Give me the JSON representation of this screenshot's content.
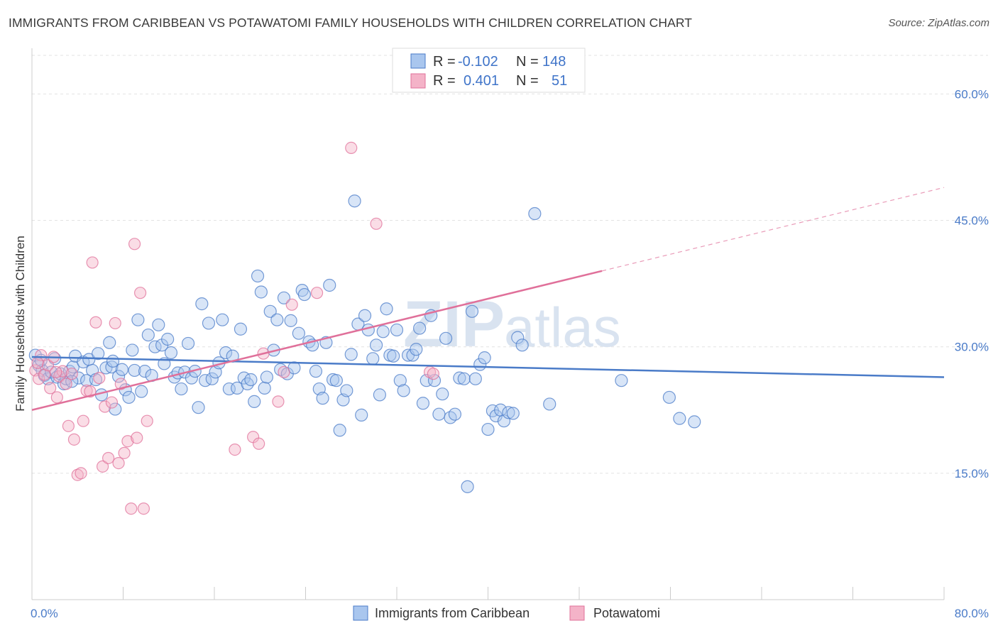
{
  "title": "IMMIGRANTS FROM CARIBBEAN VS POTAWATOMI FAMILY HOUSEHOLDS WITH CHILDREN CORRELATION CHART",
  "source": "Source: ZipAtlas.com",
  "watermark": {
    "bold": "ZIP",
    "light": "atlas"
  },
  "colors": {
    "blue": "#4a7bc8",
    "blue_fill": "#a9c6ee",
    "pink": "#e0709a",
    "pink_fill": "#f4b3c8"
  },
  "legend": {
    "rows": [
      {
        "r_label": "R =",
        "r_value": "-0.102",
        "n_label": "N =",
        "n_value": "148"
      },
      {
        "r_label": "R =",
        "r_value": "0.401",
        "n_label": "N =",
        "n_value": "51"
      }
    ]
  },
  "chart_data": {
    "type": "scatter",
    "title": "IMMIGRANTS FROM CARIBBEAN VS POTAWATOMI FAMILY HOUSEHOLDS WITH CHILDREN CORRELATION CHART",
    "xlabel": "",
    "ylabel": "Family Households with Children",
    "xlim": [
      0,
      80
    ],
    "ylim": [
      0,
      65
    ],
    "x_tick_labels": [
      "0.0%",
      "80.0%"
    ],
    "y_ticks": [
      15,
      30,
      45,
      60
    ],
    "y_tick_labels": [
      "15.0%",
      "30.0%",
      "45.0%",
      "60.0%"
    ],
    "grid": true,
    "legend_position": "top-center",
    "series": [
      {
        "name": "Immigrants from Caribbean",
        "color": "#4a7bc8",
        "trend": {
          "x": [
            0,
            80
          ],
          "y": [
            28.8,
            26.4
          ]
        },
        "points": [
          [
            0.3,
            29.0
          ],
          [
            0.6,
            27.8
          ],
          [
            0.9,
            27.2
          ],
          [
            1.1,
            26.6
          ],
          [
            1.4,
            26.2
          ],
          [
            1.7,
            27.0
          ],
          [
            2.0,
            28.6
          ],
          [
            2.2,
            26.4
          ],
          [
            2.5,
            26.8
          ],
          [
            2.8,
            25.6
          ],
          [
            3.0,
            26.2
          ],
          [
            3.3,
            27.1
          ],
          [
            3.6,
            27.6
          ],
          [
            3.8,
            28.9
          ],
          [
            4.1,
            26.3
          ],
          [
            4.5,
            28.2
          ],
          [
            4.8,
            26.0
          ],
          [
            5.0,
            28.5
          ],
          [
            5.3,
            27.2
          ],
          [
            5.6,
            26.1
          ],
          [
            5.8,
            29.2
          ],
          [
            6.1,
            24.3
          ],
          [
            6.5,
            27.5
          ],
          [
            6.8,
            30.5
          ],
          [
            7.0,
            27.6
          ],
          [
            7.3,
            22.6
          ],
          [
            7.6,
            26.5
          ],
          [
            7.9,
            27.3
          ],
          [
            8.2,
            24.9
          ],
          [
            8.5,
            24.0
          ],
          [
            8.8,
            29.6
          ],
          [
            9.0,
            27.2
          ],
          [
            9.3,
            33.2
          ],
          [
            9.6,
            24.7
          ],
          [
            9.9,
            27.1
          ],
          [
            10.2,
            31.4
          ],
          [
            10.5,
            26.6
          ],
          [
            10.8,
            30.0
          ],
          [
            11.1,
            32.6
          ],
          [
            11.4,
            30.2
          ],
          [
            11.6,
            28.0
          ],
          [
            11.9,
            30.9
          ],
          [
            12.2,
            29.3
          ],
          [
            12.5,
            26.4
          ],
          [
            12.8,
            26.9
          ],
          [
            13.1,
            25.0
          ],
          [
            13.4,
            27.0
          ],
          [
            13.7,
            30.4
          ],
          [
            14.0,
            26.3
          ],
          [
            14.3,
            27.1
          ],
          [
            14.6,
            22.8
          ],
          [
            14.9,
            35.1
          ],
          [
            15.2,
            26.0
          ],
          [
            15.5,
            32.8
          ],
          [
            15.8,
            26.2
          ],
          [
            16.1,
            27.0
          ],
          [
            16.4,
            28.1
          ],
          [
            16.7,
            33.2
          ],
          [
            17.0,
            29.3
          ],
          [
            17.3,
            25.0
          ],
          [
            17.6,
            28.9
          ],
          [
            18.0,
            25.1
          ],
          [
            18.3,
            32.1
          ],
          [
            18.6,
            26.3
          ],
          [
            18.9,
            25.6
          ],
          [
            19.2,
            26.1
          ],
          [
            19.5,
            23.5
          ],
          [
            19.8,
            38.4
          ],
          [
            20.1,
            36.5
          ],
          [
            20.4,
            25.1
          ],
          [
            20.6,
            26.4
          ],
          [
            20.9,
            34.2
          ],
          [
            21.2,
            29.6
          ],
          [
            21.5,
            33.2
          ],
          [
            21.8,
            27.3
          ],
          [
            22.1,
            35.8
          ],
          [
            22.4,
            26.8
          ],
          [
            22.7,
            33.1
          ],
          [
            23.0,
            27.5
          ],
          [
            23.4,
            31.6
          ],
          [
            23.7,
            36.7
          ],
          [
            23.9,
            36.2
          ],
          [
            24.3,
            30.6
          ],
          [
            24.6,
            30.2
          ],
          [
            24.9,
            27.1
          ],
          [
            25.2,
            25.0
          ],
          [
            25.5,
            23.9
          ],
          [
            25.8,
            30.5
          ],
          [
            26.1,
            37.3
          ],
          [
            26.4,
            26.1
          ],
          [
            26.7,
            26.0
          ],
          [
            27.0,
            20.1
          ],
          [
            27.3,
            23.7
          ],
          [
            27.6,
            24.8
          ],
          [
            28.0,
            29.1
          ],
          [
            28.3,
            47.3
          ],
          [
            28.6,
            32.7
          ],
          [
            28.9,
            21.9
          ],
          [
            29.2,
            33.7
          ],
          [
            29.5,
            32.0
          ],
          [
            29.9,
            28.6
          ],
          [
            30.2,
            30.2
          ],
          [
            30.5,
            24.3
          ],
          [
            30.8,
            31.8
          ],
          [
            31.1,
            34.5
          ],
          [
            31.4,
            29.0
          ],
          [
            31.7,
            28.9
          ],
          [
            32.0,
            32.0
          ],
          [
            32.3,
            26.0
          ],
          [
            32.6,
            24.8
          ],
          [
            33.0,
            29.0
          ],
          [
            33.4,
            29.0
          ],
          [
            33.7,
            29.7
          ],
          [
            34.0,
            32.2
          ],
          [
            34.3,
            23.3
          ],
          [
            34.6,
            26.0
          ],
          [
            35.0,
            33.7
          ],
          [
            35.3,
            26.0
          ],
          [
            35.7,
            22.0
          ],
          [
            36.0,
            24.4
          ],
          [
            36.3,
            31.0
          ],
          [
            36.7,
            21.6
          ],
          [
            37.1,
            22.0
          ],
          [
            37.5,
            26.3
          ],
          [
            37.9,
            26.2
          ],
          [
            38.2,
            13.4
          ],
          [
            38.6,
            34.2
          ],
          [
            38.9,
            26.2
          ],
          [
            39.3,
            27.9
          ],
          [
            39.7,
            28.7
          ],
          [
            40.0,
            20.2
          ],
          [
            40.4,
            22.4
          ],
          [
            40.7,
            21.8
          ],
          [
            41.1,
            22.5
          ],
          [
            41.4,
            21.2
          ],
          [
            41.8,
            22.2
          ],
          [
            42.2,
            22.1
          ],
          [
            42.6,
            31.1
          ],
          [
            43.0,
            30.2
          ],
          [
            44.1,
            45.8
          ],
          [
            45.4,
            23.2
          ],
          [
            51.7,
            26.0
          ],
          [
            55.9,
            24.0
          ],
          [
            56.8,
            21.5
          ],
          [
            58.1,
            21.1
          ],
          [
            0.8,
            28.4
          ],
          [
            3.5,
            25.9
          ],
          [
            7.1,
            28.3
          ]
        ]
      },
      {
        "name": "Potawatomi",
        "color": "#e0709a",
        "trend": {
          "x": [
            0,
            50
          ],
          "y": [
            22.5,
            39.0
          ]
        },
        "trend_dashed": {
          "x": [
            50,
            80
          ],
          "y": [
            39.0,
            48.9
          ]
        },
        "points": [
          [
            0.3,
            27.2
          ],
          [
            0.6,
            26.2
          ],
          [
            0.8,
            29.0
          ],
          [
            1.1,
            26.7
          ],
          [
            1.4,
            27.8
          ],
          [
            1.6,
            25.1
          ],
          [
            1.9,
            28.8
          ],
          [
            2.2,
            24.0
          ],
          [
            2.4,
            26.5
          ],
          [
            2.7,
            27.1
          ],
          [
            3.0,
            25.6
          ],
          [
            3.2,
            20.6
          ],
          [
            3.5,
            26.8
          ],
          [
            3.7,
            19.0
          ],
          [
            4.0,
            14.8
          ],
          [
            4.3,
            15.0
          ],
          [
            4.5,
            21.2
          ],
          [
            4.8,
            24.8
          ],
          [
            5.1,
            24.7
          ],
          [
            5.3,
            40.0
          ],
          [
            5.6,
            32.9
          ],
          [
            5.9,
            26.3
          ],
          [
            6.2,
            15.8
          ],
          [
            6.4,
            22.9
          ],
          [
            6.7,
            16.8
          ],
          [
            7.0,
            23.4
          ],
          [
            7.3,
            32.8
          ],
          [
            7.6,
            16.2
          ],
          [
            7.8,
            25.6
          ],
          [
            8.1,
            17.4
          ],
          [
            8.4,
            18.8
          ],
          [
            8.7,
            10.8
          ],
          [
            9.0,
            42.2
          ],
          [
            9.2,
            19.2
          ],
          [
            9.5,
            36.4
          ],
          [
            9.8,
            10.8
          ],
          [
            10.1,
            21.2
          ],
          [
            17.8,
            17.8
          ],
          [
            19.4,
            19.3
          ],
          [
            19.9,
            18.5
          ],
          [
            20.3,
            29.2
          ],
          [
            21.6,
            23.5
          ],
          [
            22.1,
            27.0
          ],
          [
            22.8,
            35.0
          ],
          [
            25.0,
            36.4
          ],
          [
            28.0,
            53.6
          ],
          [
            30.2,
            44.6
          ],
          [
            34.9,
            27.0
          ],
          [
            35.2,
            26.8
          ],
          [
            0.5,
            28.1
          ],
          [
            2.1,
            27.0
          ]
        ]
      }
    ]
  },
  "bottom_legend": [
    {
      "label": "Immigrants from Caribbean"
    },
    {
      "label": "Potawatomi"
    }
  ]
}
